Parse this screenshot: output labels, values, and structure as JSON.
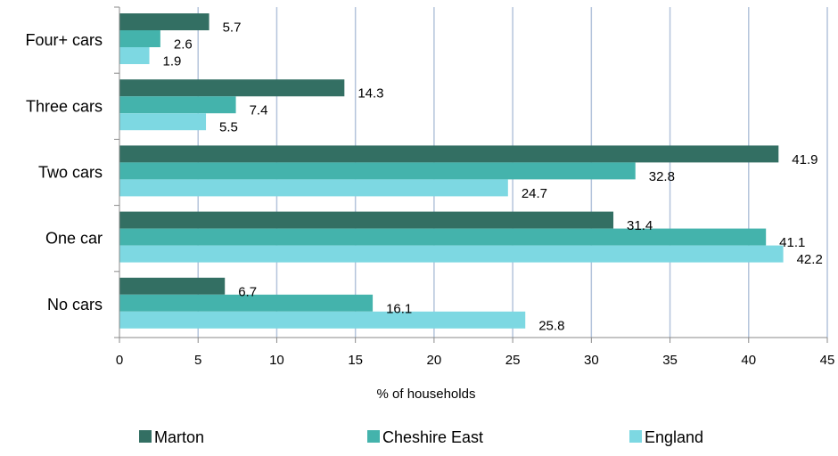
{
  "chart_data": {
    "type": "bar",
    "orientation": "horizontal",
    "categories": [
      "Four+ cars",
      "Three cars",
      "Two cars",
      "One car",
      "No cars"
    ],
    "series": [
      {
        "name": "Marton",
        "color": "#336f63",
        "values": [
          5.7,
          14.3,
          41.9,
          31.4,
          6.7
        ],
        "labels": [
          "5.7",
          "14.3",
          "41.9",
          "31.4",
          "6.7"
        ]
      },
      {
        "name": "Cheshire East",
        "color": "#44b3ac",
        "values": [
          2.6,
          7.4,
          32.8,
          41.1,
          16.1
        ],
        "labels": [
          "2.6",
          "7.4",
          "32.8",
          "41.1",
          "16.1"
        ]
      },
      {
        "name": "England",
        "color": "#7dd8e2",
        "values": [
          1.9,
          5.5,
          24.7,
          42.2,
          25.8
        ],
        "labels": [
          "1.9",
          "5.5",
          "24.7",
          "42.2",
          "25.8"
        ]
      }
    ],
    "xlabel": "% of households",
    "ylabel": "",
    "xlim": [
      0,
      45
    ],
    "xticks": [
      0,
      5,
      10,
      15,
      20,
      25,
      30,
      35,
      40,
      45
    ],
    "xtick_labels": [
      "0",
      "5",
      "10",
      "15",
      "20",
      "25",
      "30",
      "35",
      "40",
      "45"
    ],
    "grid": "vertical",
    "legend_position": "bottom"
  }
}
